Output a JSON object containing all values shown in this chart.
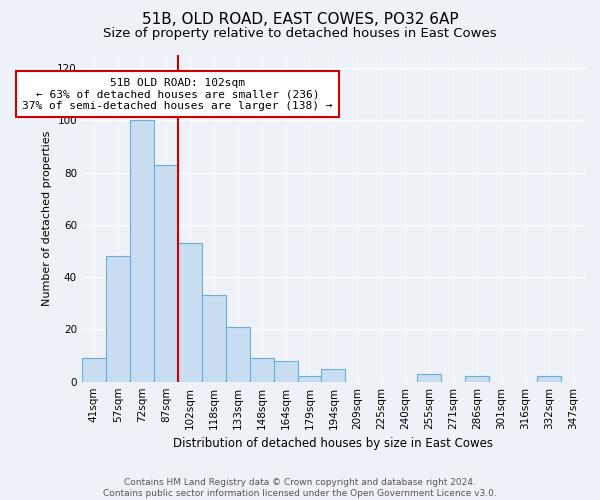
{
  "title1": "51B, OLD ROAD, EAST COWES, PO32 6AP",
  "title2": "Size of property relative to detached houses in East Cowes",
  "xlabel": "Distribution of detached houses by size in East Cowes",
  "ylabel": "Number of detached properties",
  "bar_labels": [
    "41sqm",
    "57sqm",
    "72sqm",
    "87sqm",
    "102sqm",
    "118sqm",
    "133sqm",
    "148sqm",
    "164sqm",
    "179sqm",
    "194sqm",
    "209sqm",
    "225sqm",
    "240sqm",
    "255sqm",
    "271sqm",
    "286sqm",
    "301sqm",
    "316sqm",
    "332sqm",
    "347sqm"
  ],
  "bar_values": [
    9,
    48,
    100,
    83,
    53,
    33,
    21,
    9,
    8,
    2,
    5,
    0,
    0,
    0,
    3,
    0,
    2,
    0,
    0,
    2,
    0
  ],
  "bar_color": "#c8ddf0",
  "bar_edge_color": "#6aaed6",
  "reference_line_label": "51B OLD ROAD: 102sqm",
  "annotation_line1": "← 63% of detached houses are smaller (236)",
  "annotation_line2": "37% of semi-detached houses are larger (138) →",
  "annotation_box_color": "#ffffff",
  "annotation_box_edge": "#cc0000",
  "ref_line_color": "#cc0000",
  "ref_line_index": 4,
  "ylim": [
    0,
    125
  ],
  "yticks": [
    0,
    20,
    40,
    60,
    80,
    100,
    120
  ],
  "background_color": "#eef2f8",
  "footer": "Contains HM Land Registry data © Crown copyright and database right 2024.\nContains public sector information licensed under the Open Government Licence v3.0.",
  "grid_color": "#ffffff",
  "title1_fontsize": 11,
  "title2_fontsize": 9.5,
  "xlabel_fontsize": 8.5,
  "ylabel_fontsize": 8,
  "tick_fontsize": 7.5,
  "annotation_fontsize": 8,
  "footer_fontsize": 6.5
}
